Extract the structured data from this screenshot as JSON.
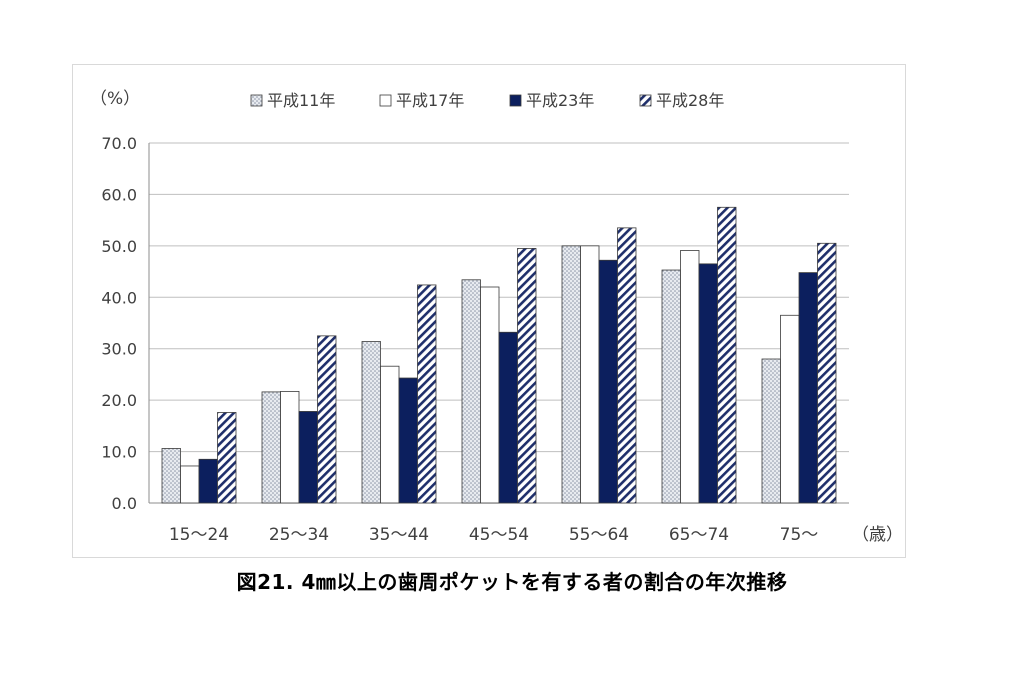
{
  "chart_data": {
    "type": "bar",
    "y_unit_label": "（%）",
    "x_unit_label": "（歳）",
    "categories": [
      "15～24",
      "25～34",
      "35～44",
      "45～54",
      "55～64",
      "65～74",
      "75～"
    ],
    "series": [
      {
        "name": "平成11年",
        "pattern": "dots",
        "color": "#d9dde4",
        "values": [
          10.6,
          21.6,
          31.4,
          43.4,
          50.0,
          45.3,
          28.0
        ]
      },
      {
        "name": "平成17年",
        "pattern": "none",
        "color": "#ffffff",
        "values": [
          7.2,
          21.7,
          26.6,
          42.0,
          50.0,
          49.1,
          36.5
        ]
      },
      {
        "name": "平成23年",
        "pattern": "solid",
        "color": "#0c1f5e",
        "values": [
          8.5,
          17.8,
          24.3,
          33.2,
          47.2,
          46.5,
          44.8
        ]
      },
      {
        "name": "平成28年",
        "pattern": "hatch",
        "color": "#1f2f6b",
        "values": [
          17.6,
          32.5,
          42.4,
          49.5,
          53.5,
          57.5,
          50.5
        ]
      }
    ],
    "ylim": [
      0,
      70
    ],
    "yticks": [
      "0.0",
      "10.0",
      "20.0",
      "30.0",
      "40.0",
      "50.0",
      "60.0",
      "70.0"
    ],
    "grid": true,
    "legend_position": "top"
  },
  "caption": "図21. 4㎜以上の歯周ポケットを有する者の割合の年次推移"
}
